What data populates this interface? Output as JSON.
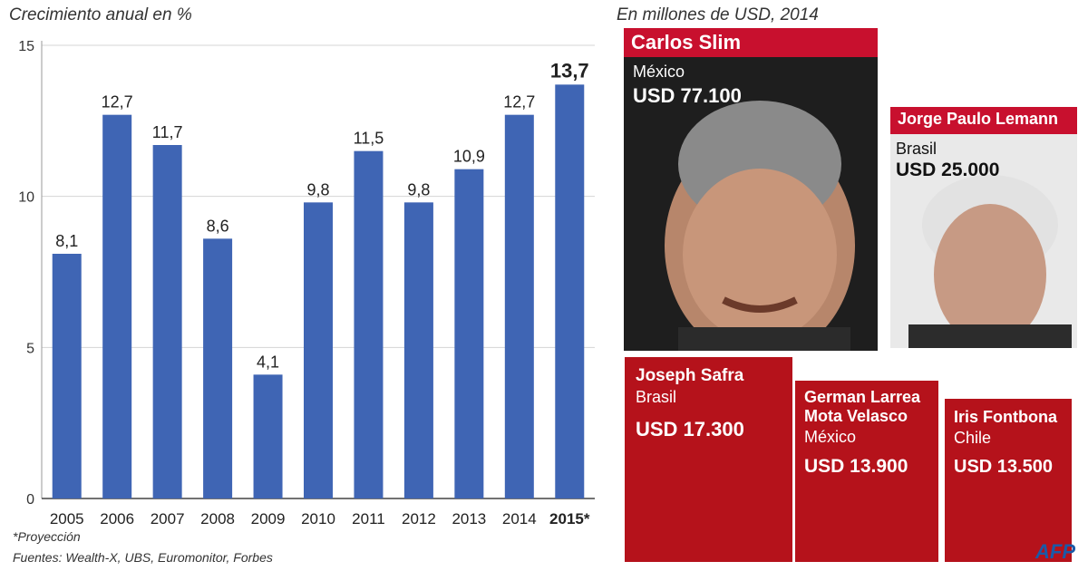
{
  "chart_data": {
    "type": "bar",
    "title": "Crecimiento anual en %",
    "categories": [
      "2005",
      "2006",
      "2007",
      "2008",
      "2009",
      "2010",
      "2011",
      "2012",
      "2013",
      "2014",
      "2015*"
    ],
    "values": [
      8.1,
      12.7,
      11.7,
      8.6,
      4.1,
      9.8,
      11.5,
      9.8,
      10.9,
      12.7,
      13.7
    ],
    "value_labels": [
      "8,1",
      "12,7",
      "11,7",
      "8,6",
      "4,1",
      "9,8",
      "11,5",
      "9,8",
      "10,9",
      "12,7",
      "13,7"
    ],
    "highlight_index": 10,
    "yticks": [
      0,
      5,
      10,
      15
    ],
    "ylim": [
      0,
      15
    ],
    "grid": true,
    "bar_color": "#3f65b4"
  },
  "footnotes": {
    "projection": "*Proyección",
    "sources": "Fuentes: Wealth-X, UBS, Euromonitor, Forbes"
  },
  "right_panel": {
    "title": "En millones de USD, 2014",
    "people": [
      {
        "name": "Carlos Slim",
        "country": "México",
        "amount": "USD 77.100"
      },
      {
        "name": "Jorge Paulo Lemann",
        "country": "Brasil",
        "amount": "USD 25.000"
      },
      {
        "name_lines": [
          "Joseph Safra"
        ],
        "country": "Brasil",
        "amount": "USD 17.300"
      },
      {
        "name_lines": [
          "German Larrea",
          "Mota Velasco"
        ],
        "country": "México",
        "amount": "USD 13.900"
      },
      {
        "name_lines": [
          "Iris Fontbona"
        ],
        "country": "Chile",
        "amount": "USD 13.500"
      }
    ],
    "accent_color": "#b5121b"
  },
  "logo": "AFP"
}
